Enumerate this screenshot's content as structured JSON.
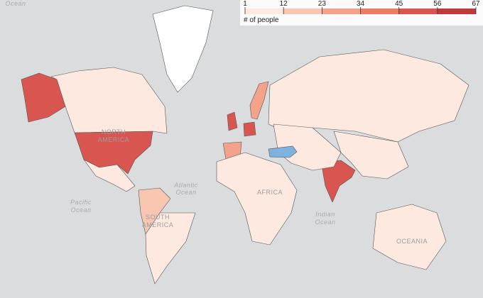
{
  "chart_data": {
    "type": "choropleth",
    "legend": {
      "title": "# of people",
      "ticks": [
        1,
        12,
        23,
        34,
        45,
        56,
        67
      ],
      "colors": [
        "#fde9df",
        "#f9c6b2",
        "#f4a28a",
        "#eb7c66",
        "#d95650",
        "#c0383e"
      ]
    },
    "labels": {
      "ocean_top": "Ocean",
      "north_america": [
        "NORTH",
        "AMERICA"
      ],
      "atlantic": [
        "Atlantic",
        "Ocean"
      ],
      "pacific": [
        "Pacific",
        "Ocean"
      ],
      "south_america": [
        "SOUTH",
        "AMERICA"
      ],
      "africa": "AFRICA",
      "indian": [
        "Indian",
        "Ocean"
      ],
      "oceania": "OCEANIA"
    },
    "region_values": [
      46,
      50,
      55,
      52,
      30,
      24,
      6,
      4,
      5,
      4,
      3,
      18,
      1,
      5,
      3
    ]
  }
}
